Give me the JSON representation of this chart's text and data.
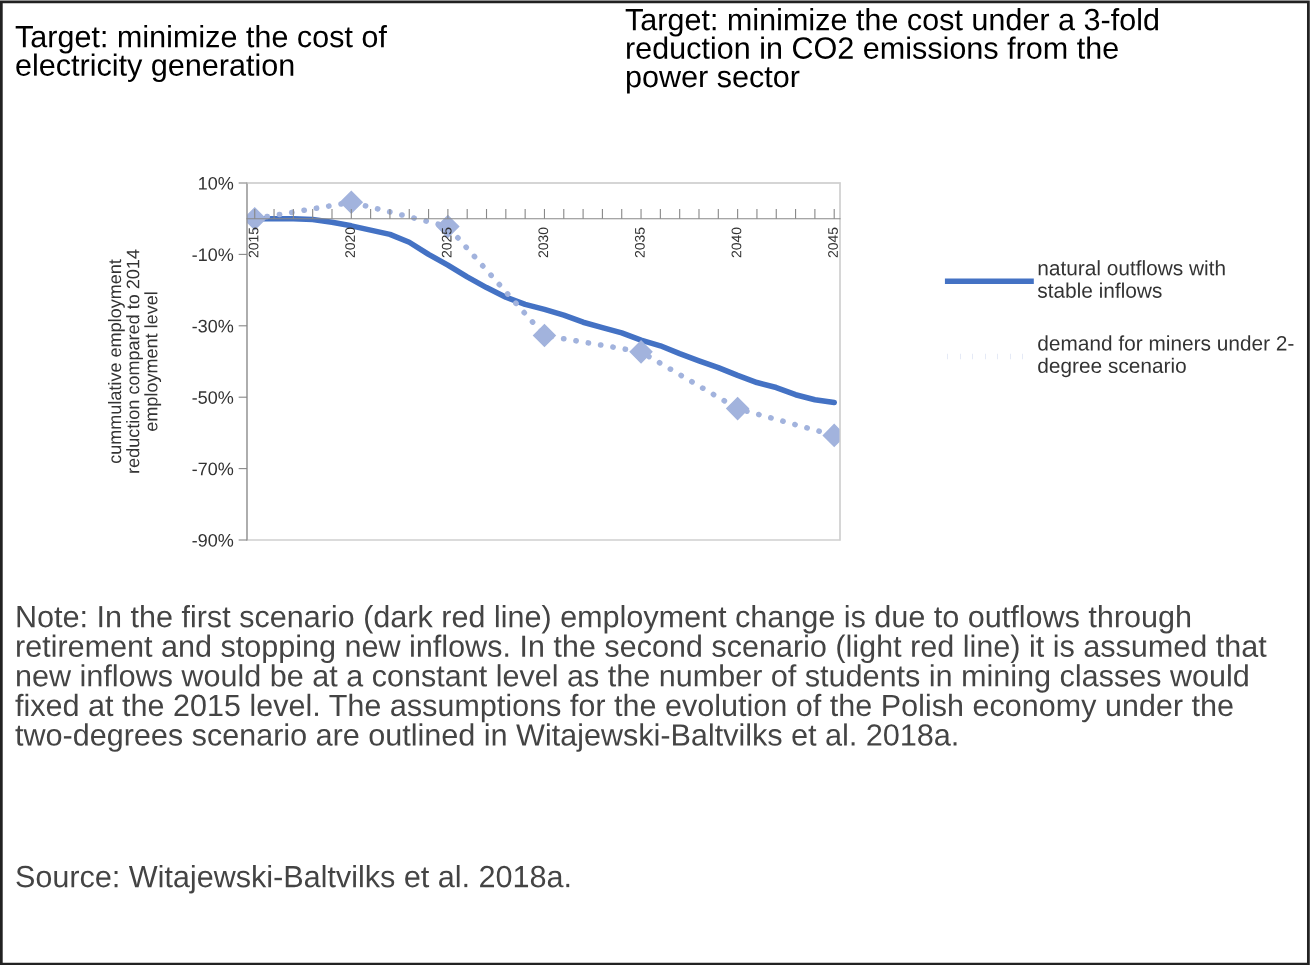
{
  "chart_data": {
    "type": "line",
    "title": "Target: minimize the cost of\nelectricity generation",
    "subtitle": "Target: minimize the cost under a 3-fold\nreduction in CO2 emissions from the\npower sector",
    "ylabel": "cummulative employment\nreduction compared to 2014\nemployment level",
    "annotations": [
      "Note: In the first scenario (dark red line) employment change is due to outflows through retirement and stopping new inflows. In the second scenario (light red line) it is assumed that new inflows would be at a constant level as the number of students in mining classes would fixed at the 2015 level. The assumptions for the evolution of the Polish economy under the two-degrees scenario are outlined in Witajewski-Baltvilks et al. 2018a.",
      "Source: Witajewski-Baltvilks et al. 2018a."
    ],
    "series": [
      {
        "name": "natural outflows with\nstable inflows",
        "color": "#4472c4",
        "marker": "none",
        "line_style": "solid",
        "x": [
          2015,
          2016,
          2017,
          2018,
          2019,
          2020,
          2021,
          2022,
          2023,
          2024,
          2025,
          2026,
          2027,
          2028,
          2029,
          2030,
          2031,
          2032,
          2033,
          2034,
          2035,
          2036,
          2037,
          2038,
          2039,
          2040,
          2041,
          2042,
          2043,
          2044,
          2045
        ],
        "values": [
          0,
          0,
          0,
          -0.2,
          -1,
          -2,
          -3.2,
          -4.4,
          -6.6,
          -10,
          -13,
          -16.3,
          -19.3,
          -22,
          -24,
          -25.4,
          -27,
          -29,
          -30.5,
          -32,
          -34,
          -35.6,
          -37.8,
          -39.8,
          -41.7,
          -43.9,
          -45.9,
          -47.3,
          -49.3,
          -50.7,
          -51.5
        ]
      },
      {
        "name": "demand for miners under 2-\ndegree scenario",
        "color": "#a2b3dd",
        "marker": "diamond",
        "line_style": "dotted",
        "x": [
          2015,
          2020,
          2025,
          2030,
          2035,
          2040,
          2045
        ],
        "values": [
          0,
          4.6,
          -2.2,
          -32.7,
          -37.3,
          -53.2,
          -60.7
        ]
      }
    ],
    "xlim": [
      2014.6,
      2045.3
    ],
    "xticks": [
      2015,
      {
        "value": 2016,
        "label": null
      },
      {
        "value": 2017,
        "label": null
      },
      {
        "value": 2018,
        "label": null
      },
      {
        "value": 2019,
        "label": null
      },
      2020,
      {
        "value": 2021,
        "label": null
      },
      {
        "value": 2022,
        "label": null
      },
      {
        "value": 2023,
        "label": null
      },
      {
        "value": 2024,
        "label": null
      },
      2025,
      {
        "value": 2026,
        "label": null
      },
      {
        "value": 2027,
        "label": null
      },
      {
        "value": 2028,
        "label": null
      },
      {
        "value": 2029,
        "label": null
      },
      2030,
      {
        "value": 2031,
        "label": null
      },
      {
        "value": 2032,
        "label": null
      },
      {
        "value": 2033,
        "label": null
      },
      {
        "value": 2034,
        "label": null
      },
      2035,
      {
        "value": 2036,
        "label": null
      },
      {
        "value": 2037,
        "label": null
      },
      {
        "value": 2038,
        "label": null
      },
      {
        "value": 2039,
        "label": null
      },
      2040,
      {
        "value": 2041,
        "label": null
      },
      {
        "value": 2042,
        "label": null
      },
      {
        "value": 2043,
        "label": null
      },
      {
        "value": 2044,
        "label": null
      },
      2045
    ],
    "ylim": [
      -90,
      10
    ],
    "yticks": [
      {
        "value": 10,
        "label": "10%"
      },
      {
        "value": -10,
        "label": "-10%"
      },
      {
        "value": -30,
        "label": "-30%"
      },
      {
        "value": -50,
        "label": "-50%"
      },
      {
        "value": -70,
        "label": "-70%"
      },
      {
        "value": -90,
        "label": "-90%"
      }
    ],
    "grid": false,
    "legend": "right"
  }
}
